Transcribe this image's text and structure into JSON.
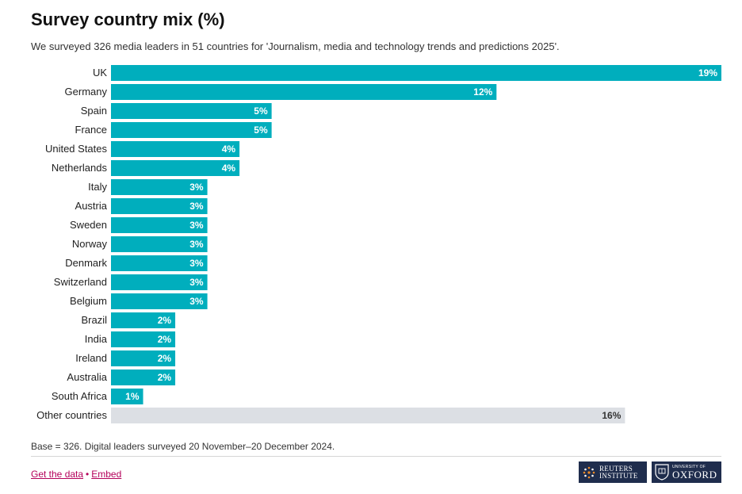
{
  "title": "Survey country mix (%)",
  "subtitle": "We surveyed 326 media leaders in 51 countries for 'Journalism, media and technology trends and predictions 2025'.",
  "footnote": "Base = 326. Digital leaders surveyed 20 November–20 December 2024.",
  "links": {
    "get_data": "Get the data",
    "separator": "•",
    "embed": "Embed"
  },
  "logos": {
    "reuters_line1": "REUTERS",
    "reuters_line2": "INSTITUTE",
    "oxford_line1": "UNIVERSITY OF",
    "oxford_line2": "OXFORD"
  },
  "colors": {
    "bar": "#00aebd",
    "other_bar": "#dcdfe4",
    "label_light": "#ffffff",
    "label_dark": "#333333",
    "logo_bg": "#1f2d4d"
  },
  "chart_data": {
    "type": "bar",
    "orientation": "horizontal",
    "categories": [
      "UK",
      "Germany",
      "Spain",
      "France",
      "United States",
      "Netherlands",
      "Italy",
      "Austria",
      "Sweden",
      "Norway",
      "Denmark",
      "Switzerland",
      "Belgium",
      "Brazil",
      "India",
      "Ireland",
      "Australia",
      "South Africa",
      "Other countries"
    ],
    "values": [
      19,
      12,
      5,
      5,
      4,
      4,
      3,
      3,
      3,
      3,
      3,
      3,
      3,
      2,
      2,
      2,
      2,
      1,
      16
    ],
    "value_labels": [
      "19%",
      "12%",
      "5%",
      "5%",
      "4%",
      "4%",
      "3%",
      "3%",
      "3%",
      "3%",
      "3%",
      "3%",
      "3%",
      "2%",
      "2%",
      "2%",
      "2%",
      "1%",
      "16%"
    ],
    "highlight_other": "Other countries",
    "xlim": [
      0,
      19
    ],
    "grid": false,
    "legend": "none"
  }
}
